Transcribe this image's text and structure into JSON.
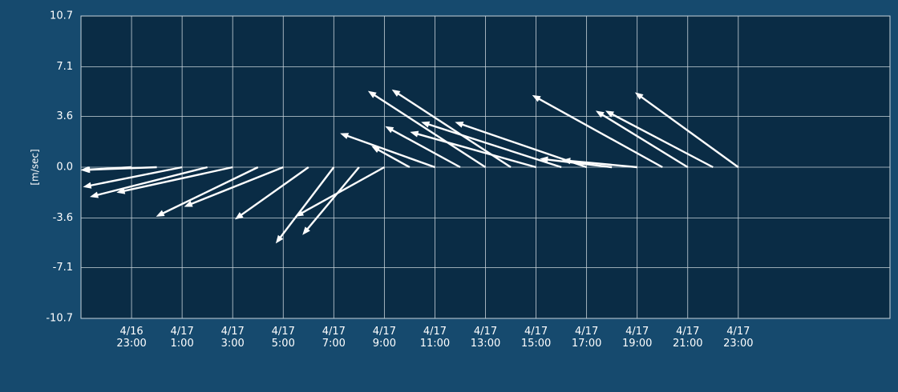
{
  "chart_data": {
    "type": "quiver",
    "ylabel": "[m/sec]",
    "x": [
      "4/16 23:00",
      "4/17 0:00",
      "4/17 1:00",
      "4/17 2:00",
      "4/17 3:00",
      "4/17 4:00",
      "4/17 5:00",
      "4/17 6:00",
      "4/17 7:00",
      "4/17 8:00",
      "4/17 9:00",
      "4/17 10:00",
      "4/17 11:00",
      "4/17 12:00",
      "4/17 13:00",
      "4/17 14:00",
      "4/17 15:00",
      "4/17 16:00",
      "4/17 17:00",
      "4/17 18:00",
      "4/17 19:00",
      "4/17 20:00",
      "4/17 21:00",
      "4/17 22:00",
      "4/17 23:00"
    ],
    "u": [
      -3.6,
      -5.3,
      -7.0,
      -8.3,
      -8.2,
      -7.2,
      -7.0,
      -5.2,
      -4.1,
      -4.0,
      -6.3,
      -2.7,
      -6.7,
      -5.3,
      -8.3,
      -8.4,
      -8.9,
      -9.9,
      -9.3,
      -5.1,
      -5.3,
      -9.2,
      -6.5,
      -7.6,
      -7.3
    ],
    "v": [
      -0.2,
      -0.2,
      -1.4,
      -2.1,
      -1.8,
      -3.5,
      -2.8,
      -3.7,
      -5.4,
      -4.8,
      -3.5,
      1.5,
      2.4,
      2.9,
      5.4,
      5.5,
      2.5,
      3.2,
      3.2,
      0.6,
      0.5,
      5.1,
      4.0,
      4.0,
      5.3
    ],
    "color": "#ffffff",
    "xlim": [
      "4/16 21:00",
      "4/18 5:00"
    ],
    "xticks": [
      "4/16 23:00",
      "4/17 1:00",
      "4/17 3:00",
      "4/17 5:00",
      "4/17 7:00",
      "4/17 9:00",
      "4/17 11:00",
      "4/17 13:00",
      "4/17 15:00",
      "4/17 17:00",
      "4/17 19:00",
      "4/17 21:00",
      "4/17 23:00"
    ],
    "ylim": [
      -10.7,
      10.7
    ],
    "yticks": [
      -10.7,
      -7.1,
      -3.6,
      {
        "value": 0,
        "label": "0.0"
      },
      3.6,
      7.1,
      10.7
    ],
    "grid": true
  }
}
